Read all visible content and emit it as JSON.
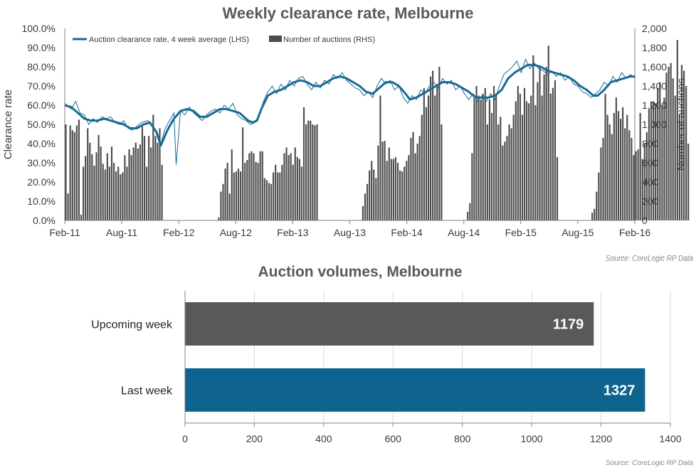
{
  "colors": {
    "line": "#1a6a92",
    "bar_dark": "#595959",
    "bar_mid": "#4d4d4d",
    "bar_blue": "#0e648e",
    "text": "#3a3a3a",
    "grid": "#d9d9d9"
  },
  "chart_data": [
    {
      "type": "bar+line",
      "title": "Weekly clearance rate, Melbourne",
      "ylabel_left": "Clearance rate",
      "ylabel_right": "Number of auctions",
      "y_left_range": [
        0,
        100
      ],
      "y_left_ticks": [
        "0.0%",
        "10.0%",
        "20.0%",
        "30.0%",
        "40.0%",
        "50.0%",
        "60.0%",
        "70.0%",
        "80.0%",
        "90.0%",
        "100.0%"
      ],
      "y_right_range": [
        0,
        2000
      ],
      "y_right_ticks": [
        "0",
        "200",
        "400",
        "600",
        "800",
        "1,000",
        "1,200",
        "1,400",
        "1,600",
        "1,800",
        "2,000"
      ],
      "x_ticks": [
        "Feb-11",
        "Aug-11",
        "Feb-12",
        "Aug-12",
        "Feb-13",
        "Aug-13",
        "Feb-14",
        "Aug-14",
        "Feb-15",
        "Aug-15",
        "Feb-16"
      ],
      "legend": [
        "Auction clearance rate, 4 week average (LHS)",
        "Number of auctions (RHS)"
      ],
      "source": "Source: CoreLogic RP Data",
      "avg_line": [
        [
          0,
          60
        ],
        [
          3,
          59
        ],
        [
          6,
          56
        ],
        [
          9,
          53
        ],
        [
          12,
          52
        ],
        [
          15,
          52
        ],
        [
          18,
          53
        ],
        [
          21,
          52
        ],
        [
          24,
          51
        ],
        [
          27,
          50
        ],
        [
          30,
          48
        ],
        [
          33,
          48
        ],
        [
          36,
          50
        ],
        [
          39,
          51
        ],
        [
          42,
          46
        ],
        [
          44,
          39
        ],
        [
          47,
          47
        ],
        [
          50,
          53
        ],
        [
          53,
          57
        ],
        [
          56,
          58
        ],
        [
          59,
          57
        ],
        [
          62,
          54
        ],
        [
          65,
          54
        ],
        [
          68,
          56
        ],
        [
          71,
          58
        ],
        [
          74,
          58
        ],
        [
          77,
          57
        ],
        [
          80,
          56
        ],
        [
          82,
          54
        ],
        [
          84,
          52
        ],
        [
          86,
          51
        ],
        [
          88,
          52
        ],
        [
          90,
          58
        ],
        [
          93,
          65
        ],
        [
          96,
          67
        ],
        [
          99,
          68
        ],
        [
          102,
          70
        ],
        [
          105,
          72
        ],
        [
          108,
          73
        ],
        [
          111,
          72
        ],
        [
          114,
          70
        ],
        [
          117,
          70
        ],
        [
          120,
          72
        ],
        [
          123,
          74
        ],
        [
          126,
          75
        ],
        [
          129,
          74
        ],
        [
          132,
          72
        ],
        [
          135,
          70
        ],
        [
          138,
          67
        ],
        [
          141,
          66
        ],
        [
          144,
          69
        ],
        [
          147,
          72
        ],
        [
          150,
          72
        ],
        [
          153,
          70
        ],
        [
          156,
          66
        ],
        [
          158,
          63
        ],
        [
          161,
          64
        ],
        [
          164,
          66
        ],
        [
          167,
          68
        ],
        [
          170,
          70
        ],
        [
          173,
          72
        ],
        [
          176,
          72
        ],
        [
          179,
          71
        ],
        [
          182,
          69
        ],
        [
          185,
          67
        ],
        [
          187,
          65
        ],
        [
          189,
          64
        ],
        [
          191,
          64
        ],
        [
          194,
          64
        ],
        [
          197,
          65
        ],
        [
          200,
          68
        ],
        [
          203,
          74
        ],
        [
          206,
          77
        ],
        [
          209,
          79
        ],
        [
          212,
          81
        ],
        [
          215,
          81
        ],
        [
          218,
          80
        ],
        [
          221,
          78
        ],
        [
          224,
          77
        ],
        [
          227,
          76
        ],
        [
          230,
          75
        ],
        [
          233,
          73
        ],
        [
          236,
          70
        ],
        [
          239,
          68
        ],
        [
          242,
          65
        ],
        [
          244,
          65
        ],
        [
          247,
          68
        ],
        [
          250,
          72
        ],
        [
          253,
          73
        ],
        [
          256,
          74
        ],
        [
          259,
          75
        ],
        [
          261,
          75
        ]
      ],
      "weekly_rate": [
        [
          0,
          61
        ],
        [
          3,
          58
        ],
        [
          5,
          62
        ],
        [
          7,
          56
        ],
        [
          9,
          55
        ],
        [
          11,
          50
        ],
        [
          13,
          53
        ],
        [
          15,
          51
        ],
        [
          17,
          54
        ],
        [
          19,
          53
        ],
        [
          21,
          54
        ],
        [
          23,
          51
        ],
        [
          25,
          50
        ],
        [
          27,
          52
        ],
        [
          29,
          48
        ],
        [
          31,
          47
        ],
        [
          33,
          49
        ],
        [
          35,
          51
        ],
        [
          38,
          52
        ],
        [
          40,
          50
        ],
        [
          42,
          45
        ],
        [
          44,
          40
        ],
        [
          46,
          48
        ],
        [
          48,
          52
        ],
        [
          50,
          56
        ],
        [
          51,
          29
        ],
        [
          53,
          57
        ],
        [
          55,
          55
        ],
        [
          57,
          59
        ],
        [
          59,
          56
        ],
        [
          61,
          54
        ],
        [
          63,
          52
        ],
        [
          65,
          55
        ],
        [
          67,
          57
        ],
        [
          69,
          58
        ],
        [
          71,
          56
        ],
        [
          73,
          60
        ],
        [
          75,
          58
        ],
        [
          77,
          61
        ],
        [
          79,
          55
        ],
        [
          81,
          53
        ],
        [
          83,
          52
        ],
        [
          85,
          50
        ],
        [
          87,
          51
        ],
        [
          89,
          55
        ],
        [
          91,
          62
        ],
        [
          93,
          67
        ],
        [
          95,
          70
        ],
        [
          97,
          66
        ],
        [
          99,
          71
        ],
        [
          101,
          68
        ],
        [
          103,
          73
        ],
        [
          105,
          70
        ],
        [
          107,
          74
        ],
        [
          109,
          75
        ],
        [
          111,
          71
        ],
        [
          113,
          68
        ],
        [
          115,
          72
        ],
        [
          117,
          69
        ],
        [
          119,
          73
        ],
        [
          121,
          71
        ],
        [
          123,
          76
        ],
        [
          125,
          74
        ],
        [
          127,
          77
        ],
        [
          129,
          73
        ],
        [
          131,
          71
        ],
        [
          133,
          69
        ],
        [
          135,
          68
        ],
        [
          137,
          65
        ],
        [
          139,
          67
        ],
        [
          141,
          64
        ],
        [
          143,
          70
        ],
        [
          145,
          74
        ],
        [
          147,
          71
        ],
        [
          149,
          73
        ],
        [
          151,
          68
        ],
        [
          153,
          70
        ],
        [
          155,
          64
        ],
        [
          157,
          61
        ],
        [
          159,
          65
        ],
        [
          161,
          63
        ],
        [
          163,
          68
        ],
        [
          165,
          66
        ],
        [
          167,
          70
        ],
        [
          169,
          72
        ],
        [
          171,
          69
        ],
        [
          173,
          74
        ],
        [
          175,
          71
        ],
        [
          177,
          73
        ],
        [
          179,
          68
        ],
        [
          181,
          70
        ],
        [
          183,
          66
        ],
        [
          185,
          63
        ],
        [
          187,
          66
        ],
        [
          189,
          62
        ],
        [
          191,
          65
        ],
        [
          193,
          62
        ],
        [
          195,
          66
        ],
        [
          197,
          63
        ],
        [
          199,
          70
        ],
        [
          201,
          76
        ],
        [
          203,
          78
        ],
        [
          205,
          80
        ],
        [
          207,
          83
        ],
        [
          209,
          77
        ],
        [
          211,
          84
        ],
        [
          213,
          79
        ],
        [
          215,
          82
        ],
        [
          217,
          79
        ],
        [
          219,
          78
        ],
        [
          221,
          76
        ],
        [
          223,
          78
        ],
        [
          225,
          75
        ],
        [
          227,
          77
        ],
        [
          229,
          73
        ],
        [
          231,
          75
        ],
        [
          233,
          71
        ],
        [
          235,
          70
        ],
        [
          237,
          67
        ],
        [
          239,
          66
        ],
        [
          241,
          64
        ],
        [
          243,
          66
        ],
        [
          245,
          68
        ],
        [
          247,
          72
        ],
        [
          249,
          70
        ],
        [
          251,
          75
        ],
        [
          253,
          72
        ],
        [
          255,
          77
        ],
        [
          257,
          74
        ],
        [
          259,
          76
        ],
        [
          261,
          74
        ]
      ],
      "auctions": [
        1000,
        280,
        990,
        940,
        920,
        990,
        1050,
        60,
        560,
        670,
        960,
        810,
        690,
        570,
        710,
        890,
        770,
        590,
        530,
        700,
        560,
        770,
        600,
        510,
        560,
        480,
        500,
        680,
        560,
        740,
        680,
        760,
        810,
        750,
        790,
        980,
        880,
        560,
        880,
        760,
        1100,
        880,
        810,
        960,
        580,
        0,
        0,
        0,
        0,
        0,
        0,
        0,
        0,
        0,
        0,
        0,
        0,
        0,
        0,
        0,
        0,
        0,
        0,
        0,
        0,
        0,
        0,
        0,
        0,
        0,
        30,
        300,
        380,
        540,
        600,
        280,
        740,
        500,
        510,
        540,
        510,
        970,
        600,
        630,
        700,
        720,
        700,
        610,
        600,
        720,
        720,
        440,
        420,
        390,
        380,
        500,
        580,
        500,
        500,
        580,
        700,
        760,
        680,
        700,
        580,
        760,
        660,
        640,
        560,
        1180,
        1000,
        1040,
        1040,
        1000,
        990,
        1000,
        0,
        0,
        0,
        0,
        0,
        0,
        0,
        0,
        0,
        0,
        0,
        0,
        0,
        0,
        0,
        0,
        0,
        0,
        0,
        0,
        150,
        280,
        380,
        520,
        620,
        530,
        440,
        780,
        1300,
        820,
        830,
        620,
        760,
        640,
        640,
        660,
        600,
        520,
        510,
        560,
        620,
        680,
        860,
        920,
        700,
        800,
        880,
        1100,
        1380,
        1180,
        1300,
        1500,
        1560,
        1300,
        1420,
        1600,
        1000,
        0,
        0,
        0,
        0,
        0,
        0,
        0,
        0,
        0,
        0,
        0,
        90,
        180,
        700,
        1280,
        1400,
        1300,
        1260,
        1320,
        1380,
        1000,
        1260,
        1120,
        1400,
        1320,
        1000,
        1080,
        780,
        820,
        880,
        1000,
        960,
        1100,
        1240,
        1400,
        1320,
        1100,
        1380,
        1240,
        1220,
        1300,
        1720,
        1200,
        1440,
        1600,
        1300,
        1520,
        1600,
        1820,
        1320,
        1380,
        1460,
        660,
        0,
        0,
        0,
        0,
        0,
        0,
        0,
        0,
        0,
        0,
        0,
        0,
        0,
        0,
        0,
        80,
        120,
        300,
        500,
        760,
        860,
        1320,
        1100,
        1000,
        900,
        1120,
        1280,
        1140,
        1060,
        1180,
        960,
        1100,
        940,
        860,
        680,
        720,
        740,
        1120,
        640,
        800,
        920,
        1160,
        1240,
        1240,
        1220,
        1380,
        1440,
        1200,
        1280,
        1540,
        1600,
        1640,
        1480,
        1300,
        1880,
        1100,
        1620,
        1560,
        1400,
        800,
        0,
        0,
        0,
        0,
        60,
        180,
        280,
        560,
        1320,
        1100
      ],
      "auctions_start_week": 0
    },
    {
      "type": "bar",
      "orientation": "horizontal",
      "title": "Auction volumes, Melbourne",
      "categories": [
        "Upcoming week",
        "Last week"
      ],
      "values": [
        1179,
        1327
      ],
      "value_labels": [
        "1179",
        "1327"
      ],
      "xlim": [
        0,
        1400
      ],
      "x_ticks": [
        "0",
        "200",
        "400",
        "600",
        "800",
        "1000",
        "1200",
        "1400"
      ],
      "source": "Source: CoreLogic RP Data"
    }
  ]
}
